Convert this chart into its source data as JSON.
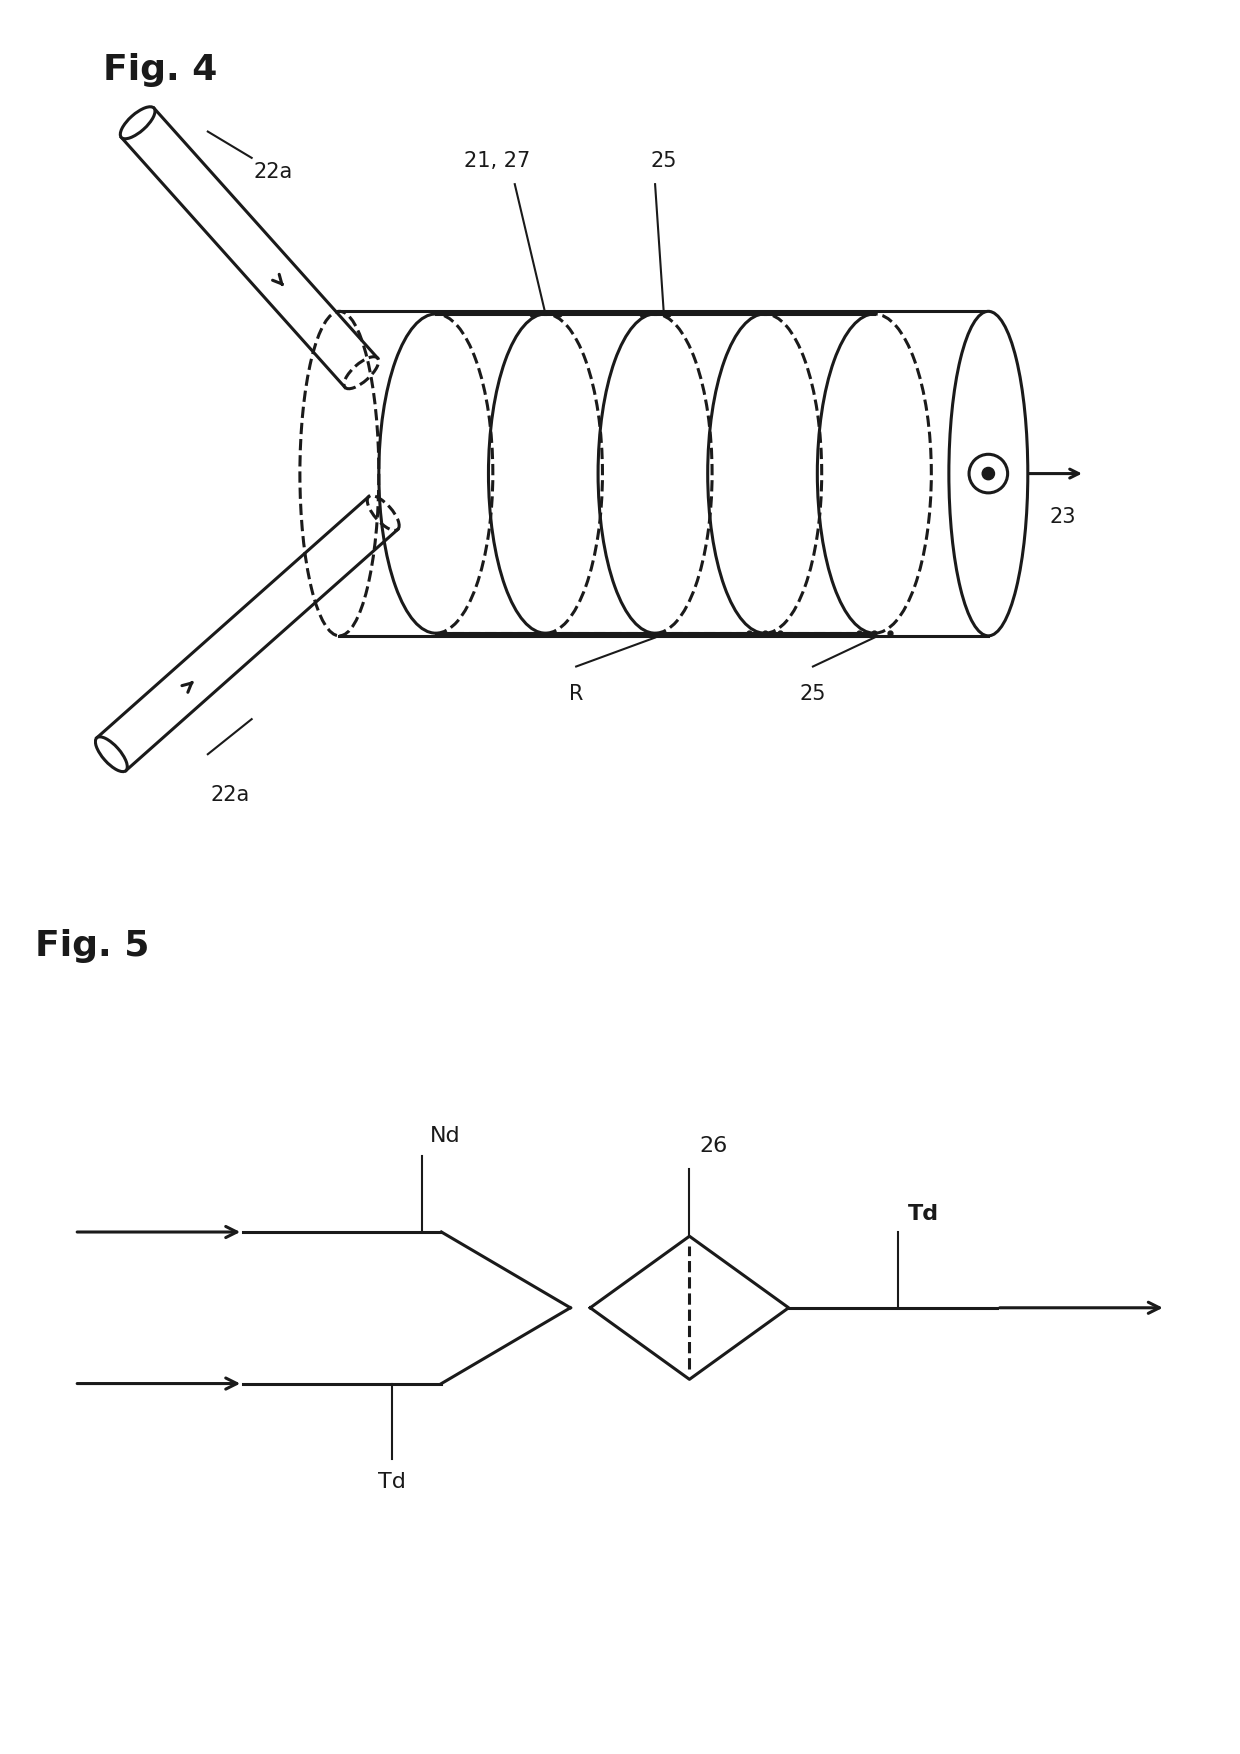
{
  "background_color": "#ffffff",
  "fig4_label": "Fig. 4",
  "fig5_label": "Fig. 5",
  "label_22a_top": "22a",
  "label_22a_bot": "22a",
  "label_21_27": "21, 27",
  "label_25_top": "25",
  "label_25_bot": "25",
  "label_R": "R",
  "label_23": "23",
  "label_26": "26",
  "label_Nd": "Nd",
  "label_Td_top": "Td",
  "label_Td_bot": "Td",
  "line_color": "#1a1a1a",
  "lw": 2.2,
  "lw_thin": 1.5
}
